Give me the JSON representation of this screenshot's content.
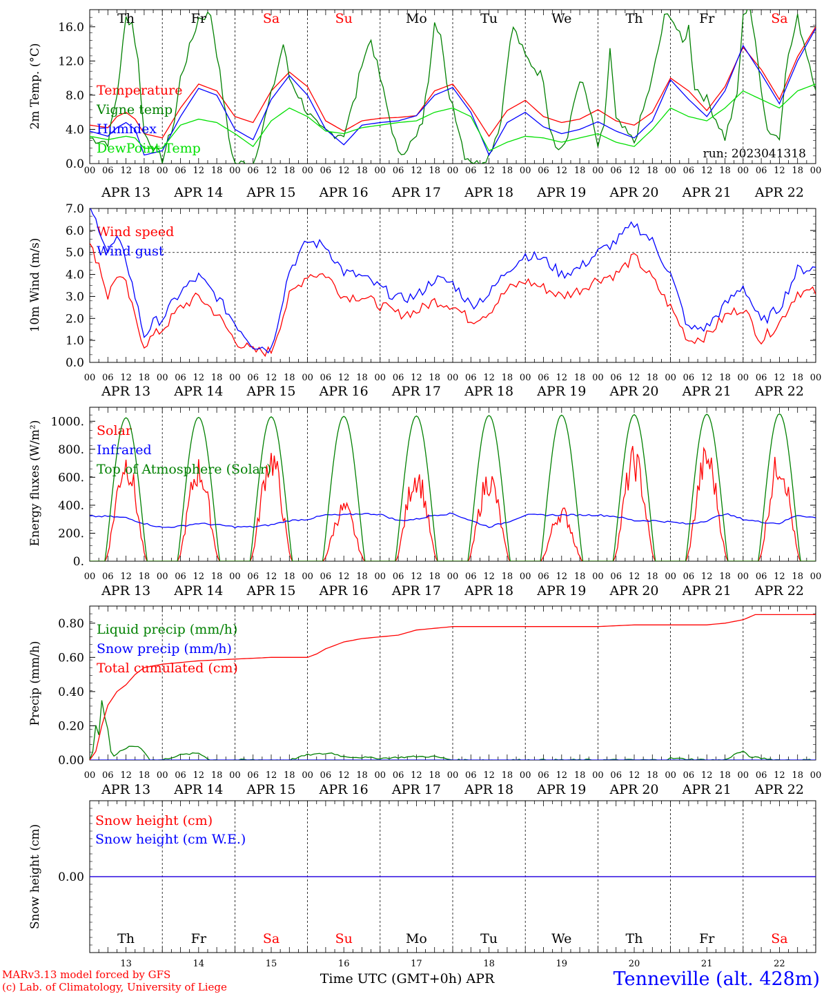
{
  "chart_data": [
    {
      "type": "line",
      "ylabel": "2m Temp. (°C)",
      "ylim": [
        0,
        18
      ],
      "yticks": [
        "0.0",
        "4.0",
        "8.0",
        "12.0",
        "16.0"
      ],
      "x_unit": "hours from APR 13 00 UTC",
      "annotation": "run: 2023041318",
      "series": [
        {
          "name": "Temperature",
          "color": "#ff0000",
          "x": [
            0,
            6,
            9,
            12,
            15,
            18,
            24,
            30,
            36,
            42,
            48,
            54,
            60,
            66,
            72,
            78,
            84,
            90,
            96,
            102,
            108,
            114,
            120,
            126,
            132,
            138,
            144,
            150,
            156,
            162,
            168,
            174,
            180,
            186,
            192,
            198,
            204,
            210,
            216,
            222,
            228,
            234,
            240
          ],
          "values": [
            4.5,
            4.2,
            5.5,
            6.0,
            5.2,
            3.5,
            3.0,
            6.5,
            9.3,
            8.5,
            5.5,
            4.8,
            8.5,
            10.7,
            9.0,
            5.0,
            3.8,
            5.0,
            5.3,
            5.4,
            5.6,
            8.5,
            9.3,
            6.5,
            3.2,
            6.2,
            7.4,
            5.5,
            4.8,
            5.2,
            6.3,
            5.0,
            4.5,
            6.0,
            10.0,
            8.5,
            6.2,
            9.0,
            13.6,
            11.0,
            7.5,
            12.5,
            16.0
          ]
        },
        {
          "name": "Vigne temp",
          "color": "#008000",
          "x": [
            0,
            6,
            9,
            12,
            14,
            16,
            18,
            24,
            28,
            30,
            36,
            40,
            42,
            46,
            48,
            54,
            60,
            64,
            66,
            72,
            76,
            80,
            84,
            88,
            90,
            93,
            96,
            102,
            108,
            110,
            112,
            114,
            116,
            118,
            120,
            124,
            128,
            132,
            136,
            138,
            140,
            144,
            150,
            152,
            155,
            158,
            160,
            162,
            164,
            168,
            170,
            172,
            174,
            180,
            186,
            190,
            192,
            196,
            198,
            200,
            204,
            210,
            214,
            216,
            218,
            220,
            224,
            228,
            230,
            234,
            240
          ],
          "values": [
            3.0,
            2.5,
            8.0,
            17.0,
            16.5,
            12.0,
            3.5,
            0.5,
            5.0,
            10.0,
            17.0,
            17.5,
            13.0,
            3.0,
            0.0,
            0.0,
            8.0,
            14.0,
            10.0,
            6.0,
            4.0,
            3.5,
            3.5,
            8.0,
            12.0,
            14.5,
            10.0,
            1.0,
            3.0,
            5.0,
            10.0,
            17.0,
            15.0,
            9.0,
            7.0,
            1.0,
            0.0,
            1.0,
            5.0,
            12.0,
            16.0,
            12.5,
            10.0,
            4.5,
            1.5,
            3.0,
            7.0,
            10.0,
            8.0,
            2.0,
            4.0,
            13.5,
            5.0,
            2.5,
            10.0,
            17.0,
            17.5,
            14.0,
            16.0,
            9.0,
            7.5,
            3.0,
            8.0,
            17.0,
            19.0,
            14.0,
            4.0,
            3.0,
            11.0,
            17.0,
            9.0
          ]
        },
        {
          "name": "Humidex",
          "color": "#0000ff",
          "x": [
            0,
            6,
            9,
            12,
            15,
            18,
            24,
            30,
            36,
            42,
            48,
            54,
            60,
            66,
            72,
            78,
            84,
            90,
            96,
            102,
            108,
            114,
            120,
            126,
            132,
            138,
            144,
            150,
            156,
            162,
            168,
            174,
            180,
            186,
            192,
            198,
            204,
            210,
            216,
            222,
            228,
            234,
            240
          ],
          "values": [
            3.8,
            3.2,
            4.2,
            4.8,
            4.0,
            1.0,
            1.5,
            5.5,
            8.8,
            8.0,
            4.0,
            2.8,
            7.5,
            10.3,
            8.0,
            4.0,
            2.2,
            4.5,
            4.8,
            5.0,
            5.6,
            8.0,
            8.9,
            6.0,
            1.0,
            4.8,
            6.0,
            4.3,
            3.5,
            4.0,
            4.9,
            3.8,
            3.0,
            5.0,
            9.8,
            7.5,
            5.5,
            8.5,
            13.8,
            10.5,
            7.0,
            12.0,
            15.8
          ]
        },
        {
          "name": "DewPoint Temp",
          "color": "#00e000",
          "x": [
            0,
            6,
            9,
            12,
            15,
            18,
            24,
            30,
            36,
            42,
            48,
            54,
            60,
            66,
            72,
            78,
            84,
            90,
            96,
            102,
            108,
            114,
            120,
            126,
            132,
            138,
            144,
            150,
            156,
            162,
            168,
            174,
            180,
            186,
            192,
            198,
            204,
            210,
            216,
            222,
            228,
            234,
            240
          ],
          "values": [
            3.2,
            2.8,
            3.0,
            3.2,
            3.0,
            1.8,
            1.8,
            4.5,
            5.2,
            4.8,
            3.5,
            2.0,
            5.0,
            6.5,
            5.5,
            3.8,
            3.5,
            4.2,
            4.5,
            4.8,
            5.0,
            6.0,
            6.5,
            5.5,
            1.5,
            2.5,
            3.2,
            3.0,
            2.5,
            3.0,
            3.5,
            2.5,
            2.0,
            4.0,
            6.5,
            5.5,
            5.0,
            6.5,
            8.5,
            7.5,
            6.5,
            8.5,
            9.3
          ]
        }
      ]
    },
    {
      "type": "line",
      "ylabel": "10m Wind (m/s)",
      "ylim": [
        0,
        7
      ],
      "yticks": [
        "0.0",
        "1.0",
        "2.0",
        "3.0",
        "4.0",
        "5.0",
        "6.0",
        "7.0"
      ],
      "ref_line": 5,
      "series": [
        {
          "name": "Wind speed",
          "color": "#ff0000",
          "x": [
            0,
            3,
            6,
            9,
            12,
            15,
            18,
            21,
            24,
            30,
            36,
            42,
            48,
            54,
            60,
            66,
            72,
            78,
            84,
            90,
            96,
            102,
            108,
            114,
            120,
            126,
            132,
            138,
            144,
            150,
            156,
            162,
            168,
            174,
            180,
            186,
            192,
            198,
            204,
            210,
            216,
            222,
            228,
            234,
            240
          ],
          "values": [
            5.3,
            4.5,
            3.0,
            4.0,
            3.5,
            2.0,
            0.8,
            1.2,
            1.5,
            2.5,
            3.0,
            2.2,
            1.0,
            0.5,
            0.5,
            3.0,
            4.0,
            4.0,
            3.0,
            3.0,
            2.6,
            2.2,
            2.3,
            2.8,
            2.6,
            1.9,
            2.3,
            3.3,
            3.7,
            3.4,
            3.0,
            3.3,
            3.8,
            4.0,
            4.8,
            3.8,
            2.5,
            1.0,
            1.2,
            2.1,
            2.5,
            1.0,
            1.8,
            3.2,
            3.2
          ]
        },
        {
          "name": "Wind gust",
          "color": "#0000ff",
          "x": [
            0,
            3,
            6,
            9,
            12,
            15,
            18,
            21,
            24,
            30,
            36,
            42,
            48,
            54,
            60,
            66,
            72,
            78,
            84,
            90,
            96,
            102,
            108,
            114,
            120,
            126,
            132,
            138,
            144,
            150,
            156,
            162,
            168,
            174,
            180,
            186,
            192,
            198,
            204,
            210,
            216,
            222,
            228,
            234,
            240
          ],
          "values": [
            6.9,
            6.2,
            5.0,
            5.6,
            4.7,
            3.0,
            1.2,
            1.8,
            2.0,
            3.2,
            3.9,
            3.0,
            1.8,
            0.8,
            0.6,
            4.2,
            5.5,
            5.3,
            4.1,
            3.9,
            3.4,
            2.9,
            3.0,
            3.8,
            3.6,
            2.6,
            3.1,
            4.2,
            4.9,
            4.7,
            4.0,
            4.3,
            5.0,
            5.5,
            6.3,
            5.5,
            4.0,
            1.5,
            1.6,
            2.6,
            3.5,
            1.8,
            2.5,
            4.2,
            4.3
          ]
        }
      ]
    },
    {
      "type": "line",
      "ylabel": "Energy fluxes (W/m²)",
      "ylim": [
        0,
        1100
      ],
      "yticks": [
        "0.",
        "200.",
        "400.",
        "600.",
        "800.",
        "1000."
      ],
      "series": [
        {
          "name": "Solar",
          "color": "#ff0000",
          "peaks": [
            750,
            690,
            780,
            400,
            650,
            620,
            370,
            760,
            780,
            750
          ]
        },
        {
          "name": "Infrared",
          "color": "#0000ff",
          "x": [
            0,
            6,
            12,
            18,
            24,
            30,
            36,
            42,
            48,
            54,
            60,
            66,
            72,
            78,
            84,
            90,
            96,
            102,
            108,
            114,
            120,
            126,
            132,
            138,
            144,
            150,
            156,
            162,
            168,
            174,
            180,
            186,
            192,
            198,
            204,
            210,
            216,
            222,
            228,
            234,
            240
          ],
          "values": [
            320,
            320,
            310,
            270,
            240,
            250,
            270,
            260,
            245,
            245,
            260,
            290,
            300,
            330,
            330,
            340,
            335,
            290,
            300,
            330,
            340,
            290,
            245,
            280,
            330,
            330,
            330,
            330,
            330,
            320,
            290,
            290,
            280,
            265,
            290,
            340,
            300,
            280,
            270,
            330,
            310
          ]
        },
        {
          "name": "Top of Atmosphere (Solar)",
          "color": "#008000",
          "peaks": [
            1025,
            1028,
            1032,
            1035,
            1038,
            1041,
            1044,
            1047,
            1050,
            1053
          ]
        }
      ]
    },
    {
      "type": "line",
      "ylabel": "Precip (mm/h)",
      "ylim": [
        0,
        0.9
      ],
      "yticks": [
        "0.00",
        "0.20",
        "0.40",
        "0.60",
        "0.80"
      ],
      "series": [
        {
          "name": "Liquid precip (mm/h)",
          "color": "#008000",
          "x": [
            0,
            1,
            2,
            3,
            4,
            5,
            6,
            7,
            8,
            9,
            10,
            12,
            14,
            16,
            18,
            20,
            24,
            30,
            36,
            40,
            48,
            60,
            66,
            72,
            80,
            84,
            96,
            108,
            114,
            120,
            144,
            168,
            190,
            192,
            204,
            210,
            214,
            216,
            218,
            222,
            228,
            240
          ],
          "values": [
            0,
            0.05,
            0.2,
            0.15,
            0.35,
            0.25,
            0.18,
            0.05,
            0.02,
            0.03,
            0.05,
            0.07,
            0.08,
            0.08,
            0.05,
            0,
            0,
            0.03,
            0.04,
            0,
            0,
            0,
            0,
            0.03,
            0.04,
            0.02,
            0.01,
            0.02,
            0.02,
            0,
            0,
            0,
            0,
            0.01,
            0,
            0,
            0.04,
            0.05,
            0.02,
            0.01,
            0,
            0
          ]
        },
        {
          "name": "Snow precip (mm/h)",
          "color": "#0000ff",
          "x": [
            0,
            240
          ],
          "values": [
            0,
            0
          ]
        },
        {
          "name": "Total cumulated (cm)",
          "color": "#ff0000",
          "x": [
            0,
            2,
            4,
            6,
            9,
            12,
            15,
            18,
            24,
            36,
            48,
            60,
            66,
            72,
            75,
            78,
            84,
            90,
            96,
            102,
            108,
            120,
            144,
            168,
            180,
            204,
            210,
            216,
            220,
            240
          ],
          "values": [
            0,
            0.05,
            0.2,
            0.32,
            0.4,
            0.44,
            0.5,
            0.54,
            0.56,
            0.58,
            0.59,
            0.6,
            0.6,
            0.6,
            0.62,
            0.65,
            0.69,
            0.71,
            0.72,
            0.73,
            0.76,
            0.78,
            0.78,
            0.78,
            0.79,
            0.79,
            0.8,
            0.82,
            0.85,
            0.85
          ]
        }
      ]
    },
    {
      "type": "line",
      "ylabel": "Snow height (cm)",
      "yticks": [
        "0.00"
      ],
      "series": [
        {
          "name": "Snow height (cm)",
          "color": "#ff0000",
          "x": [
            0,
            240
          ],
          "values": [
            0,
            0
          ]
        },
        {
          "name": "Snow height (cm W.E.)",
          "color": "#0000ff",
          "x": [
            0,
            240
          ],
          "values": [
            0,
            0
          ]
        }
      ]
    }
  ],
  "axes": {
    "hour_ticks": [
      "00",
      "06",
      "12",
      "18"
    ],
    "end_tick": "00",
    "dates": [
      "APR 13",
      "APR 14",
      "APR 15",
      "APR 16",
      "APR 17",
      "APR 18",
      "APR 19",
      "APR 20",
      "APR 21",
      "APR 22"
    ],
    "weekdays": [
      "Th",
      "Fr",
      "Sa",
      "Su",
      "Mo",
      "Tu",
      "We",
      "Th",
      "Fr",
      "Sa"
    ],
    "weekday_colors": [
      "#000000",
      "#000000",
      "#ff0000",
      "#ff0000",
      "#000000",
      "#000000",
      "#000000",
      "#000000",
      "#000000",
      "#ff0000"
    ],
    "day_numbers": [
      "13",
      "14",
      "15",
      "16",
      "17",
      "18",
      "19",
      "20",
      "21",
      "22"
    ]
  },
  "footer": {
    "model": "MARv3.13 model forced by GFS",
    "credit": "(c) Lab. of Climatology, University of Liege",
    "xlabel": "Time UTC (GMT+0h) APR",
    "station": "Tenneville (alt. 428m)"
  }
}
